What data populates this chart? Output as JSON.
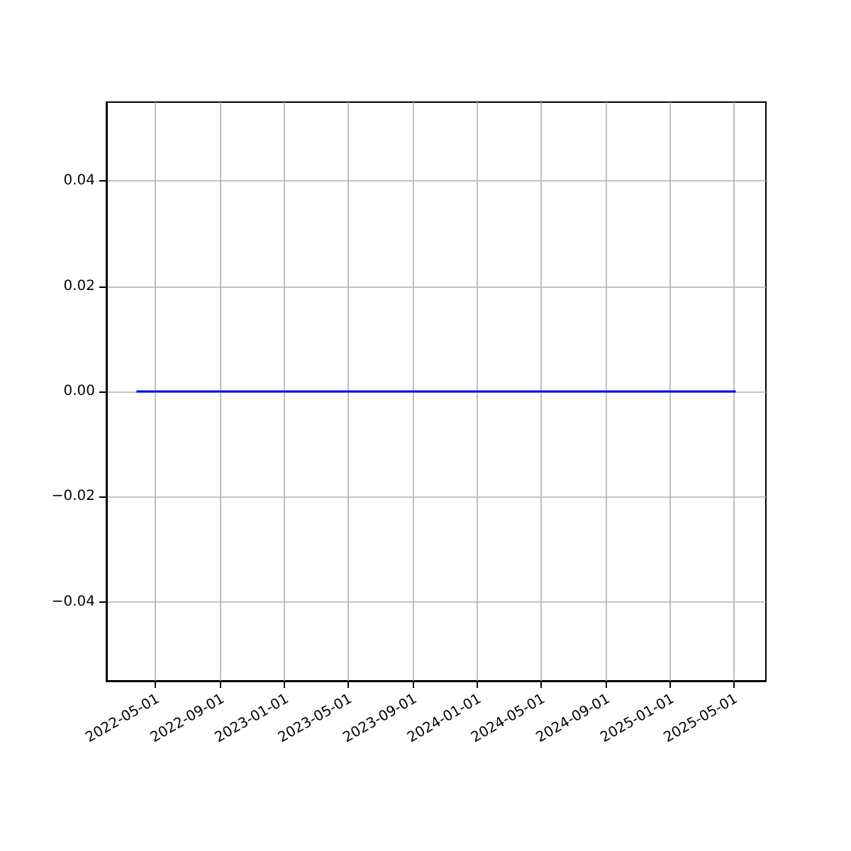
{
  "chart_data": {
    "type": "line",
    "x": [
      "2022-03-27",
      "2025-05-06"
    ],
    "series": [
      {
        "color": "#0000ff",
        "values": [
          0,
          0
        ]
      }
    ],
    "xlim": [
      "2022-01-29",
      "2025-07-02"
    ],
    "xticks": [
      "2022-05-01",
      "2022-09-01",
      "2023-01-01",
      "2023-05-01",
      "2023-09-01",
      "2024-01-01",
      "2024-05-01",
      "2024-09-01",
      "2025-01-01",
      "2025-05-01"
    ],
    "ylim": [
      -0.055,
      0.055
    ],
    "yticks": [
      -0.04,
      -0.02,
      {
        "value": 0,
        "label": "0.00"
      },
      0.02,
      0.04
    ],
    "grid": true,
    "marker": "none",
    "line_style": "solid"
  }
}
